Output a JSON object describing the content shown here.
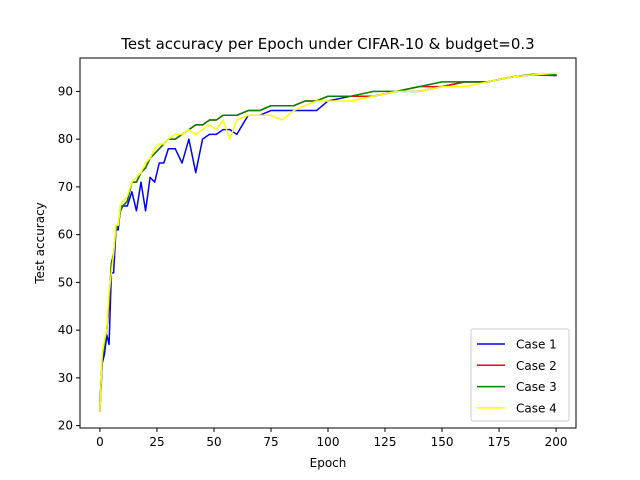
{
  "chart_data": {
    "type": "line",
    "title": "Test accuracy per Epoch under CIFAR-10 & budget=0.3",
    "xlabel": "Epoch",
    "ylabel": "Test accuracy",
    "xlim": [
      -8.75,
      208.75
    ],
    "ylim": [
      19.5,
      97.0
    ],
    "xticks": [
      0,
      25,
      50,
      75,
      100,
      125,
      150,
      175,
      200
    ],
    "yticks": [
      20,
      30,
      40,
      50,
      60,
      70,
      80,
      90
    ],
    "grid": false,
    "legend_position": "bottom-right",
    "x": [
      0,
      1,
      2,
      3,
      4,
      5,
      6,
      7,
      8,
      9,
      10,
      12,
      14,
      16,
      18,
      20,
      22,
      24,
      26,
      28,
      30,
      33,
      36,
      39,
      42,
      45,
      48,
      51,
      54,
      57,
      60,
      65,
      70,
      75,
      80,
      85,
      90,
      95,
      100,
      110,
      120,
      130,
      140,
      150,
      160,
      170,
      180,
      190,
      200
    ],
    "series": [
      {
        "name": "Case 1",
        "color": "#0000ff",
        "values": [
          23,
          33,
          35,
          39,
          37,
          52,
          52,
          61,
          61,
          66,
          66,
          66,
          69,
          65,
          71,
          65,
          72,
          71,
          75,
          75,
          78,
          78,
          75,
          80,
          73,
          80,
          81,
          81,
          82,
          82,
          81,
          85,
          85,
          86,
          86,
          86,
          86,
          86,
          88,
          89,
          89,
          90,
          90,
          91,
          92,
          92,
          93,
          93.5,
          93.3
        ]
      },
      {
        "name": "Case 2",
        "color": "#ff0000",
        "values": [
          24,
          34,
          37,
          40,
          45,
          54,
          56,
          61,
          62,
          65,
          66,
          67,
          71,
          71,
          73,
          74,
          76,
          77,
          78,
          79,
          80,
          80,
          81,
          82,
          83,
          83,
          84,
          84,
          85,
          85,
          85,
          86,
          86,
          87,
          87,
          87,
          88,
          88,
          89,
          89,
          89,
          90,
          91,
          91,
          92,
          92,
          93,
          93.5,
          93.4
        ]
      },
      {
        "name": "Case 3",
        "color": "#008000",
        "values": [
          25,
          34,
          37,
          40,
          46,
          54,
          56,
          61,
          62,
          65,
          66,
          67,
          71,
          71,
          73,
          74,
          76,
          77,
          78,
          79,
          80,
          80,
          81,
          82,
          83,
          83,
          84,
          84,
          85,
          85,
          85,
          86,
          86,
          87,
          87,
          87,
          88,
          88,
          89,
          89,
          90,
          90,
          91,
          92,
          92,
          92,
          93,
          93.6,
          93.5
        ]
      },
      {
        "name": "Case 4",
        "color": "#ffff00",
        "values": [
          23,
          35,
          38,
          40,
          48,
          52,
          56,
          62,
          62,
          66,
          67,
          68,
          71,
          72,
          73,
          75,
          76,
          78,
          79,
          79,
          80,
          81,
          81,
          82,
          81,
          82,
          83,
          82,
          84,
          80,
          84,
          85,
          85,
          85,
          84,
          86,
          87,
          88,
          88,
          88,
          89,
          90,
          90,
          91,
          91,
          92,
          93,
          93.5,
          93.8
        ]
      }
    ]
  }
}
